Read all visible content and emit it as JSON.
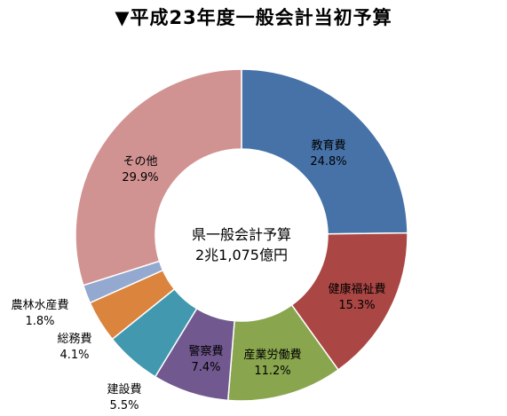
{
  "chart_data": {
    "type": "pie",
    "title": "▼平成23年度一般会計当初予算",
    "center_label": {
      "line1": "県一般会計予算",
      "line2": "2兆1,075億円"
    },
    "slices": [
      {
        "label": "教育費",
        "value": 24.8,
        "value_label": "24.8%",
        "color": "#4672A8"
      },
      {
        "label": "健康福祉費",
        "value": 15.3,
        "value_label": "15.3%",
        "color": "#AA4643"
      },
      {
        "label": "産業労働費",
        "value": 11.2,
        "value_label": "11.2%",
        "color": "#89A54E"
      },
      {
        "label": "警察費",
        "value": 7.4,
        "value_label": "7.4%",
        "color": "#71588F"
      },
      {
        "label": "建設費",
        "value": 5.5,
        "value_label": "5.5%",
        "color": "#4198AF"
      },
      {
        "label": "総務費",
        "value": 4.1,
        "value_label": "4.1%",
        "color": "#DB843D"
      },
      {
        "label": "農林水産費",
        "value": 1.8,
        "value_label": "1.8%",
        "color": "#93A9CF"
      },
      {
        "label": "その他",
        "value": 29.9,
        "value_label": "29.9%",
        "color": "#D19392"
      }
    ]
  }
}
